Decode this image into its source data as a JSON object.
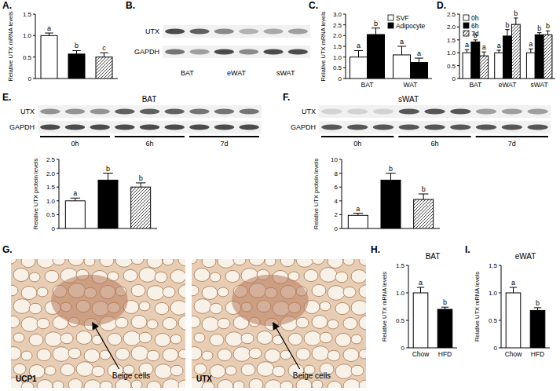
{
  "chart_data": [
    {
      "type": "bar",
      "panel": "A.",
      "categories": [
        null,
        null,
        null
      ],
      "values": [
        1.0,
        0.57,
        0.5
      ],
      "errors": [
        0.06,
        0.08,
        0.1
      ],
      "letters": [
        "a",
        "b",
        "c"
      ],
      "colors": [
        "#ffffff",
        "#000000",
        "#404040"
      ],
      "ylabel": "Relative UTX mRNA levels",
      "ylim": [
        0,
        1.5
      ],
      "yticks": [
        0,
        0.5,
        {
          "value": 1,
          "label": "1.0"
        },
        1.5
      ]
    },
    {
      "type": "bar",
      "panel": "C.",
      "categories": [
        "BAT",
        "WAT"
      ],
      "series": [
        {
          "name": "SVF",
          "color": "#ffffff",
          "values": [
            1.0,
            1.1
          ],
          "errors": [
            0.3,
            0.4
          ],
          "letters": [
            "a",
            "a"
          ]
        },
        {
          "name": "Adipocyte",
          "color": "#000000",
          "values": [
            2.05,
            0.75
          ],
          "errors": [
            0.3,
            0.2
          ],
          "letters": [
            "b",
            "a"
          ]
        }
      ],
      "ylabel": "Relative UTX mRNA levels",
      "ylim": [
        0,
        3
      ],
      "yticks": [
        0,
        0.5,
        {
          "value": 1,
          "label": "1.0"
        },
        1.5,
        {
          "value": 2,
          "label": "2.0"
        },
        2.5,
        {
          "value": 3,
          "label": "3.0"
        }
      ],
      "legend": "top-right"
    },
    {
      "type": "bar",
      "panel": "D.",
      "categories": [
        "BAT",
        "eWAT",
        "sWAT"
      ],
      "series": [
        {
          "name": "0h",
          "color": "#ffffff",
          "values": [
            1.0,
            1.0,
            1.0
          ],
          "errors": [
            0.12,
            0.1,
            0.15
          ],
          "letters": [
            "a",
            "a",
            "a"
          ]
        },
        {
          "name": "6h",
          "color": "#000000",
          "values": [
            1.42,
            1.65,
            1.7
          ],
          "errors": [
            0.08,
            0.25,
            0.08
          ],
          "letters": [
            "b",
            "b",
            "b"
          ]
        },
        {
          "name": "7d",
          "color": "#404040",
          "values": [
            0.88,
            2.1,
            1.7
          ],
          "errors": [
            0.15,
            0.25,
            0.15
          ],
          "letters": [
            "a",
            "b",
            "b"
          ]
        }
      ],
      "ylim": [
        0,
        2.5
      ],
      "yticks": [
        0,
        0.5,
        {
          "value": 1,
          "label": "1.0"
        },
        1.5,
        {
          "value": 2,
          "label": "2.0"
        },
        2.5
      ],
      "legend": "top-left"
    },
    {
      "type": "bar",
      "panel": "E.",
      "title": "BAT",
      "categories": [
        null,
        null,
        null
      ],
      "values": [
        1.0,
        1.75,
        1.5
      ],
      "errors": [
        0.1,
        0.25,
        0.15
      ],
      "letters": [
        "a",
        "b",
        "b"
      ],
      "colors": [
        "#ffffff",
        "#000000",
        "#404040"
      ],
      "ylabel": "Relative UTX protein levels",
      "ylim": [
        0,
        2.5
      ],
      "yticks": [
        0,
        0.5,
        {
          "value": 1,
          "label": "1.0"
        },
        1.5,
        {
          "value": 2,
          "label": "2.0"
        },
        2.5
      ]
    },
    {
      "type": "bar",
      "panel": "F.",
      "title": "sWAT",
      "categories": [
        null,
        null,
        null
      ],
      "values": [
        1.9,
        7.0,
        4.2
      ],
      "errors": [
        0.3,
        1.0,
        0.8
      ],
      "letters": [
        "a",
        "b",
        "b"
      ],
      "colors": [
        "#ffffff",
        "#000000",
        "#404040"
      ],
      "ylabel": "Relative UTX protein levels",
      "ylim": [
        0,
        10
      ],
      "yticks": [
        0,
        2,
        4,
        6,
        8,
        10
      ]
    },
    {
      "type": "bar",
      "panel": "H.",
      "title": "BAT",
      "categories": [
        "Chow",
        "HFD"
      ],
      "values": [
        1.0,
        0.7
      ],
      "errors": [
        0.1,
        0.04
      ],
      "letters": [
        "a",
        "b"
      ],
      "colors": [
        "#ffffff",
        "#000000"
      ],
      "ylabel": "Relative UTX mRNA levels",
      "ylim": [
        0,
        1.5
      ],
      "yticks": [
        0,
        0.5,
        {
          "value": 1,
          "label": "1.0"
        },
        1.5
      ]
    },
    {
      "type": "bar",
      "panel": "I.",
      "title": "eWAT",
      "categories": [
        "Chow",
        "HFD"
      ],
      "values": [
        1.0,
        0.68
      ],
      "errors": [
        0.1,
        0.05
      ],
      "letters": [
        "a",
        "b"
      ],
      "colors": [
        "#ffffff",
        "#000000"
      ],
      "ylabel": "Relative UTX mRNA levels",
      "ylim": [
        0,
        1.5
      ],
      "yticks": [
        0,
        0.5,
        {
          "value": 1,
          "label": "1.0"
        },
        1.5
      ]
    }
  ],
  "blots": [
    {
      "panel": "B.",
      "rows": [
        "UTX",
        "GAPDH"
      ],
      "lanes": [
        "BAT",
        "eWAT",
        "sWAT"
      ]
    },
    {
      "rows": [
        "UTX",
        "GAPDH"
      ],
      "lanes": [
        "0h",
        "6h",
        "7d"
      ]
    },
    {
      "rows": [
        "UTX",
        "GAPDH"
      ],
      "lanes": [
        "0h",
        "6h",
        "7d"
      ]
    }
  ],
  "micrographs": {
    "panel": "G.",
    "images": [
      {
        "label": "UCP1",
        "annotation": "Beige cells"
      },
      {
        "label": "UTX",
        "annotation": "Beige cells"
      }
    ]
  }
}
